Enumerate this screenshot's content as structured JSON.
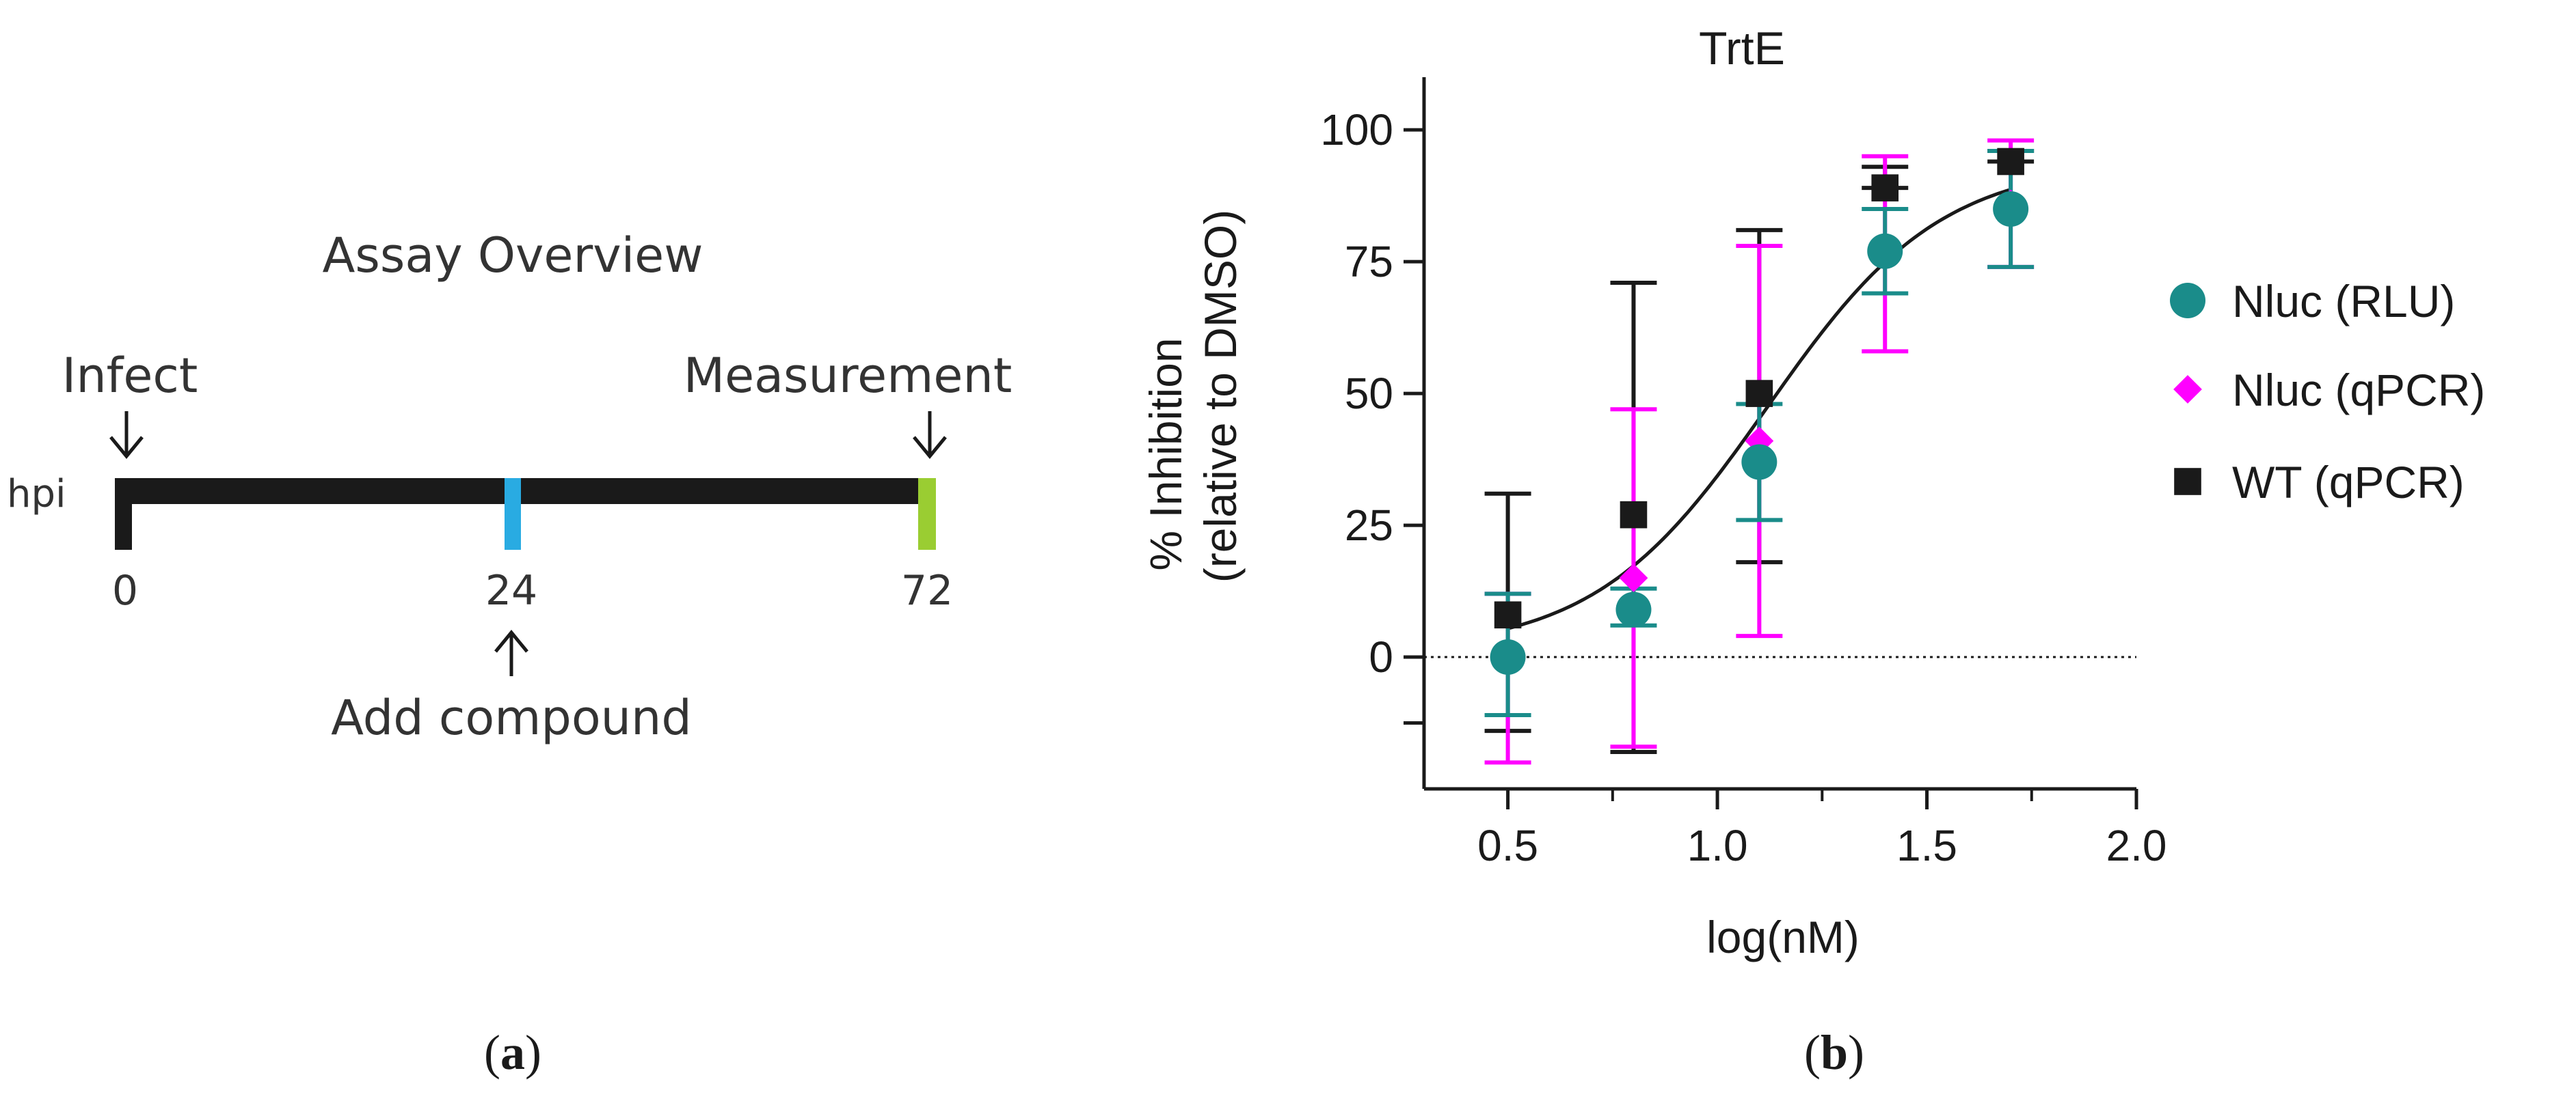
{
  "colors": {
    "black": "#1a1a1a",
    "teal": "#1a8c8a",
    "magenta": "#ff00ff",
    "timeline_blue": "#29abe2",
    "timeline_green": "#9acd32",
    "text": "#333333"
  },
  "panel_a": {
    "title": "Assay Overview",
    "infect_label": "Infect",
    "measurement_label": "Measurement",
    "axis_label": "hpi",
    "ticks": [
      "0",
      "24",
      "72"
    ],
    "add_label": "Add compound",
    "caption_letter": "a"
  },
  "panel_b": {
    "caption_letter": "b"
  },
  "chart_data": {
    "type": "scatter",
    "title": "TrtE",
    "xlabel": "log(nM)",
    "ylabel_line1": "% Inhibition",
    "ylabel_line2": "(relative to DMSO)",
    "xlim": [
      0.3,
      2.0
    ],
    "ylim": [
      -25,
      110
    ],
    "xticks": [
      0.5,
      1.0,
      1.5,
      2.0
    ],
    "xtick_labels": [
      "0.5",
      "1.0",
      "1.5",
      "2.0"
    ],
    "yticks": [
      0,
      25,
      50,
      75,
      100
    ],
    "ytick_labels": [
      "0",
      "25",
      "50",
      "75",
      "100"
    ],
    "reference_line_y": 0,
    "series": [
      {
        "name": "WT (qPCR)",
        "marker": "square",
        "color": "#1a1a1a",
        "x": [
          0.5,
          0.8,
          1.1,
          1.4,
          1.7
        ],
        "y": [
          8,
          27,
          50,
          89,
          94
        ],
        "err_low": [
          -14,
          -18,
          18,
          89,
          94
        ],
        "err_high": [
          31,
          71,
          81,
          93,
          96
        ]
      },
      {
        "name": "Nluc (qPCR)",
        "marker": "diamond",
        "color": "#ff00ff",
        "x": [
          0.5,
          0.8,
          1.1,
          1.4,
          1.7
        ],
        "y": [
          0,
          15,
          41,
          77,
          86
        ],
        "err_low": [
          -20,
          -17,
          4,
          58,
          74
        ],
        "err_high": [
          12,
          47,
          78,
          95,
          98
        ]
      },
      {
        "name": "Nluc (RLU)",
        "marker": "circle",
        "color": "#1a8c8a",
        "x": [
          0.5,
          0.8,
          1.1,
          1.4,
          1.7
        ],
        "y": [
          0,
          9,
          37,
          77,
          85
        ],
        "err_low": [
          -11,
          6,
          26,
          69,
          74
        ],
        "err_high": [
          12,
          13,
          48,
          85,
          96
        ]
      }
    ],
    "fit_curve": {
      "model": "four-parameter logistic",
      "bottom": 1,
      "top": 94,
      "log_ic50": 1.12,
      "hill_slope": 2.1,
      "x_range": [
        0.5,
        1.7
      ]
    },
    "legend": {
      "position": "right",
      "items": [
        {
          "label": "Nluc (RLU)",
          "marker": "circle",
          "color": "#1a8c8a"
        },
        {
          "label": "Nluc (qPCR)",
          "marker": "diamond",
          "color": "#ff00ff"
        },
        {
          "label": "WT (qPCR)",
          "marker": "square",
          "color": "#1a1a1a"
        }
      ]
    }
  }
}
